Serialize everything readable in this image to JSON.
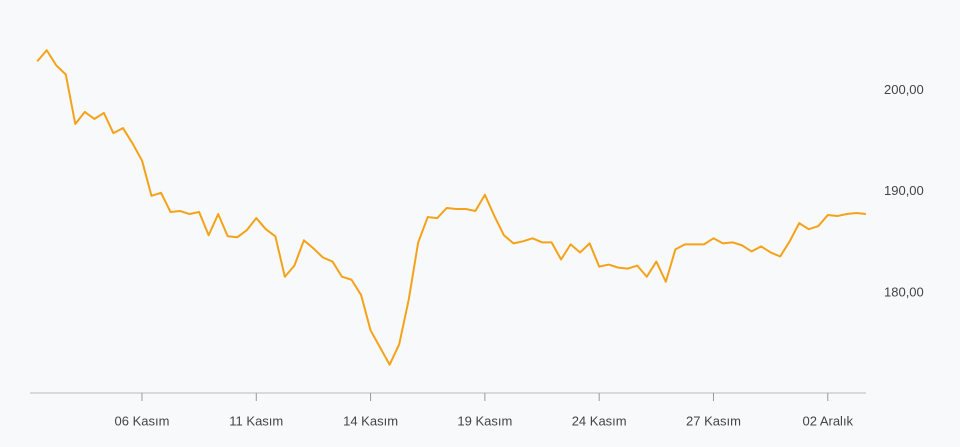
{
  "chart_data": {
    "type": "line",
    "categories": [
      null,
      null,
      null,
      null,
      null,
      null,
      null,
      null,
      null,
      null,
      null,
      "06 Kasım",
      null,
      null,
      null,
      null,
      null,
      null,
      null,
      null,
      null,
      null,
      null,
      "11 Kasım",
      null,
      null,
      null,
      null,
      null,
      null,
      null,
      null,
      null,
      null,
      null,
      "14 Kasım",
      null,
      null,
      null,
      null,
      null,
      null,
      null,
      null,
      null,
      null,
      null,
      "19 Kasım",
      null,
      null,
      null,
      null,
      null,
      null,
      null,
      null,
      null,
      null,
      null,
      "24 Kasım",
      null,
      null,
      null,
      null,
      null,
      null,
      null,
      null,
      null,
      null,
      null,
      "27 Kasım",
      null,
      null,
      null,
      null,
      null,
      null,
      null,
      null,
      null,
      null,
      null,
      "02 Aralık",
      null,
      null,
      null,
      null
    ],
    "series": [
      {
        "color": "#f5a21b",
        "values": [
          202.9,
          204.0,
          202.5,
          201.6,
          196.7,
          197.9,
          197.2,
          197.8,
          195.8,
          196.3,
          194.8,
          193.1,
          189.6,
          189.9,
          188.0,
          188.1,
          187.8,
          188.0,
          185.7,
          187.8,
          185.6,
          185.5,
          186.2,
          187.4,
          186.3,
          185.6,
          181.6,
          182.7,
          185.2,
          184.4,
          183.5,
          183.1,
          181.6,
          181.3,
          179.8,
          176.3,
          174.6,
          172.9,
          174.9,
          179.3,
          185.0,
          187.5,
          187.4,
          188.4,
          188.3,
          188.3,
          188.1,
          189.7,
          187.6,
          185.7,
          184.9,
          185.1,
          185.4,
          185.0,
          185.0,
          183.3,
          184.8,
          184.0,
          184.9,
          182.6,
          182.8,
          182.5,
          182.4,
          182.7,
          181.6,
          183.1,
          181.1,
          184.3,
          184.8,
          184.8,
          184.8,
          185.4,
          184.9,
          185.0,
          184.7,
          184.1,
          184.6,
          184.0,
          183.6,
          185.1,
          186.9,
          186.3,
          186.6,
          187.7,
          187.6,
          187.8,
          187.9,
          187.8
        ]
      }
    ],
    "ylim": [
      170.1,
      206
    ],
    "yticks": [
      {
        "value": 180,
        "label": "180,00"
      },
      {
        "value": 190,
        "label": "190,00"
      },
      {
        "value": 200,
        "label": "200,00"
      }
    ]
  }
}
